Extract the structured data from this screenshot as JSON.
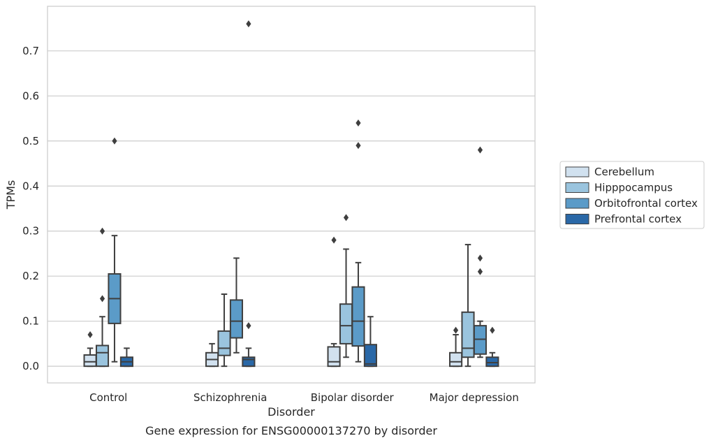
{
  "chart_data": {
    "type": "box",
    "title": "",
    "xlabel": "Disorder",
    "ylabel": "TPMs",
    "caption": "Gene expression for ENSG00000137270 by disorder",
    "ylim": [
      -0.037,
      0.799
    ],
    "yticks": [
      0.0,
      0.1,
      0.2,
      0.3,
      0.4,
      0.5,
      0.6,
      0.7
    ],
    "ytick_labels": [
      "0.0",
      "0.1",
      "0.2",
      "0.3",
      "0.4",
      "0.5",
      "0.6",
      "0.7"
    ],
    "grid": "y",
    "legend_position": "right",
    "categories": [
      "Control",
      "Schizophrenia",
      "Bipolar disorder",
      "Major depression"
    ],
    "series": [
      {
        "name": "Cerebellum",
        "color": "#d1e1ef",
        "boxes": [
          {
            "whislo": 0.0,
            "q1": 0.0,
            "med": 0.01,
            "q3": 0.025,
            "whishi": 0.04,
            "fliers": [
              0.07
            ]
          },
          {
            "whislo": 0.0,
            "q1": 0.0,
            "med": 0.015,
            "q3": 0.03,
            "whishi": 0.05,
            "fliers": []
          },
          {
            "whislo": 0.0,
            "q1": 0.0,
            "med": 0.01,
            "q3": 0.043,
            "whishi": 0.05,
            "fliers": [
              0.28
            ]
          },
          {
            "whislo": 0.0,
            "q1": 0.0,
            "med": 0.01,
            "q3": 0.03,
            "whishi": 0.07,
            "fliers": [
              0.08
            ]
          }
        ]
      },
      {
        "name": "Hipppocampus",
        "color": "#9ac4de",
        "boxes": [
          {
            "whislo": 0.0,
            "q1": 0.0,
            "med": 0.03,
            "q3": 0.046,
            "whishi": 0.11,
            "fliers": [
              0.15,
              0.3
            ]
          },
          {
            "whislo": 0.0,
            "q1": 0.024,
            "med": 0.04,
            "q3": 0.078,
            "whishi": 0.16,
            "fliers": []
          },
          {
            "whislo": 0.02,
            "q1": 0.05,
            "med": 0.09,
            "q3": 0.138,
            "whishi": 0.26,
            "fliers": [
              0.33
            ]
          },
          {
            "whislo": 0.0,
            "q1": 0.02,
            "med": 0.04,
            "q3": 0.12,
            "whishi": 0.27,
            "fliers": []
          }
        ]
      },
      {
        "name": "Orbitofrontal cortex",
        "color": "#5b9bc8",
        "boxes": [
          {
            "whislo": 0.01,
            "q1": 0.095,
            "med": 0.15,
            "q3": 0.205,
            "whishi": 0.29,
            "fliers": [
              0.5
            ]
          },
          {
            "whislo": 0.03,
            "q1": 0.063,
            "med": 0.1,
            "q3": 0.147,
            "whishi": 0.24,
            "fliers": []
          },
          {
            "whislo": 0.01,
            "q1": 0.045,
            "med": 0.1,
            "q3": 0.176,
            "whishi": 0.23,
            "fliers": [
              0.49,
              0.54
            ]
          },
          {
            "whislo": 0.02,
            "q1": 0.027,
            "med": 0.06,
            "q3": 0.09,
            "whishi": 0.1,
            "fliers": [
              0.21,
              0.24,
              0.48
            ]
          }
        ]
      },
      {
        "name": "Prefrontal cortex",
        "color": "#2a68a7",
        "boxes": [
          {
            "whislo": 0.0,
            "q1": 0.0,
            "med": 0.01,
            "q3": 0.02,
            "whishi": 0.04,
            "fliers": []
          },
          {
            "whislo": 0.0,
            "q1": 0.0,
            "med": 0.015,
            "q3": 0.02,
            "whishi": 0.04,
            "fliers": [
              0.09,
              0.76
            ]
          },
          {
            "whislo": 0.0,
            "q1": 0.0,
            "med": 0.005,
            "q3": 0.048,
            "whishi": 0.11,
            "fliers": []
          },
          {
            "whislo": 0.0,
            "q1": 0.0,
            "med": 0.008,
            "q3": 0.02,
            "whishi": 0.03,
            "fliers": [
              0.08
            ]
          }
        ]
      }
    ]
  }
}
